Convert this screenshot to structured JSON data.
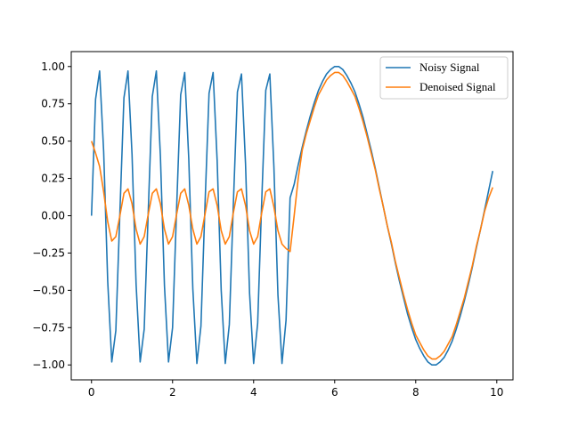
{
  "chart_data": {
    "type": "line",
    "x": [
      0,
      0.1,
      0.2,
      0.3,
      0.4,
      0.5,
      0.6,
      0.7,
      0.8,
      0.9,
      1,
      1.1,
      1.2,
      1.3,
      1.4,
      1.5,
      1.6,
      1.7,
      1.8,
      1.9,
      2,
      2.1,
      2.2,
      2.3,
      2.4,
      2.5,
      2.6,
      2.7,
      2.8,
      2.9,
      3,
      3.1,
      3.2,
      3.3,
      3.4,
      3.5,
      3.6,
      3.7,
      3.8,
      3.9,
      4,
      4.1,
      4.2,
      4.3,
      4.4,
      4.5,
      4.6,
      4.7,
      4.8,
      4.9,
      5,
      5.1,
      5.2,
      5.3,
      5.4,
      5.5,
      5.6,
      5.7,
      5.8,
      5.9,
      6,
      6.1,
      6.2,
      6.3,
      6.4,
      6.5,
      6.6,
      6.7,
      6.8,
      6.9,
      7,
      7.1,
      7.2,
      7.3,
      7.4,
      7.5,
      7.6,
      7.7,
      7.8,
      7.9,
      8,
      8.1,
      8.2,
      8.3,
      8.4,
      8.5,
      8.6,
      8.7,
      8.8,
      8.9,
      9,
      9.1,
      9.2,
      9.3,
      9.4,
      9.5,
      9.6,
      9.7,
      9.8,
      9.9
    ],
    "series": [
      {
        "name": "Noisy Signal",
        "color": "#1f77b4",
        "values": [
          0,
          0.78,
          0.97,
          0.43,
          -0.44,
          -0.98,
          -0.77,
          0.02,
          0.79,
          0.97,
          0.41,
          -0.46,
          -0.98,
          -0.76,
          0.03,
          0.8,
          0.97,
          0.4,
          -0.47,
          -0.98,
          -0.75,
          0.05,
          0.81,
          0.96,
          0.38,
          -0.49,
          -0.99,
          -0.74,
          0.07,
          0.82,
          0.96,
          0.37,
          -0.5,
          -0.99,
          -0.73,
          0.08,
          0.83,
          0.95,
          0.35,
          -0.52,
          -0.99,
          -0.72,
          0.1,
          0.84,
          0.95,
          0.33,
          -0.53,
          -0.99,
          -0.7,
          0.12,
          0.21,
          0.34,
          0.46,
          0.57,
          0.67,
          0.76,
          0.84,
          0.9,
          0.95,
          0.98,
          1,
          1,
          0.98,
          0.94,
          0.89,
          0.83,
          0.75,
          0.66,
          0.55,
          0.44,
          0.32,
          0.19,
          0.06,
          -0.07,
          -0.19,
          -0.32,
          -0.44,
          -0.55,
          -0.66,
          -0.75,
          -0.83,
          -0.89,
          -0.94,
          -0.98,
          -1,
          -1,
          -0.98,
          -0.95,
          -0.9,
          -0.84,
          -0.76,
          -0.67,
          -0.57,
          -0.46,
          -0.34,
          -0.21,
          -0.09,
          0.04,
          0.17,
          0.3
        ]
      },
      {
        "name": "Denoised Signal",
        "color": "#ff7f0e",
        "values": [
          0.5,
          0.42,
          0.33,
          0.16,
          -0.04,
          -0.17,
          -0.14,
          0,
          0.15,
          0.18,
          0.08,
          -0.09,
          -0.19,
          -0.14,
          0.01,
          0.15,
          0.18,
          0.08,
          -0.09,
          -0.19,
          -0.14,
          0.01,
          0.15,
          0.18,
          0.07,
          -0.09,
          -0.19,
          -0.14,
          0.01,
          0.16,
          0.18,
          0.07,
          -0.1,
          -0.19,
          -0.14,
          0.02,
          0.16,
          0.18,
          0.07,
          -0.1,
          -0.19,
          -0.14,
          0.02,
          0.16,
          0.18,
          0.06,
          -0.1,
          -0.19,
          -0.22,
          -0.24,
          0,
          0.25,
          0.44,
          0.55,
          0.64,
          0.73,
          0.81,
          0.86,
          0.91,
          0.94,
          0.96,
          0.96,
          0.94,
          0.9,
          0.85,
          0.8,
          0.72,
          0.63,
          0.53,
          0.42,
          0.31,
          0.18,
          0.06,
          -0.07,
          -0.18,
          -0.31,
          -0.42,
          -0.53,
          -0.63,
          -0.72,
          -0.8,
          -0.85,
          -0.9,
          -0.94,
          -0.96,
          -0.96,
          -0.94,
          -0.91,
          -0.86,
          -0.81,
          -0.73,
          -0.64,
          -0.55,
          -0.44,
          -0.33,
          -0.2,
          -0.09,
          0.03,
          0.12,
          0.19
        ]
      }
    ],
    "xlim": [
      -0.5,
      10.4
    ],
    "ylim": [
      -1.1,
      1.1
    ],
    "xticks": [
      0,
      2,
      4,
      6,
      8,
      10
    ],
    "yticks": [
      {
        "value": -1,
        "label": "−1.00"
      },
      {
        "value": -0.75,
        "label": "−0.75"
      },
      {
        "value": -0.5,
        "label": "−0.50"
      },
      {
        "value": -0.25,
        "label": "−0.25"
      },
      {
        "value": 0,
        "label": "0.00"
      },
      {
        "value": 0.25,
        "label": "0.25"
      },
      {
        "value": 0.5,
        "label": "0.50"
      },
      {
        "value": 0.75,
        "label": "0.75"
      },
      {
        "value": 1,
        "label": "1.00"
      }
    ],
    "legend": "upper right"
  }
}
